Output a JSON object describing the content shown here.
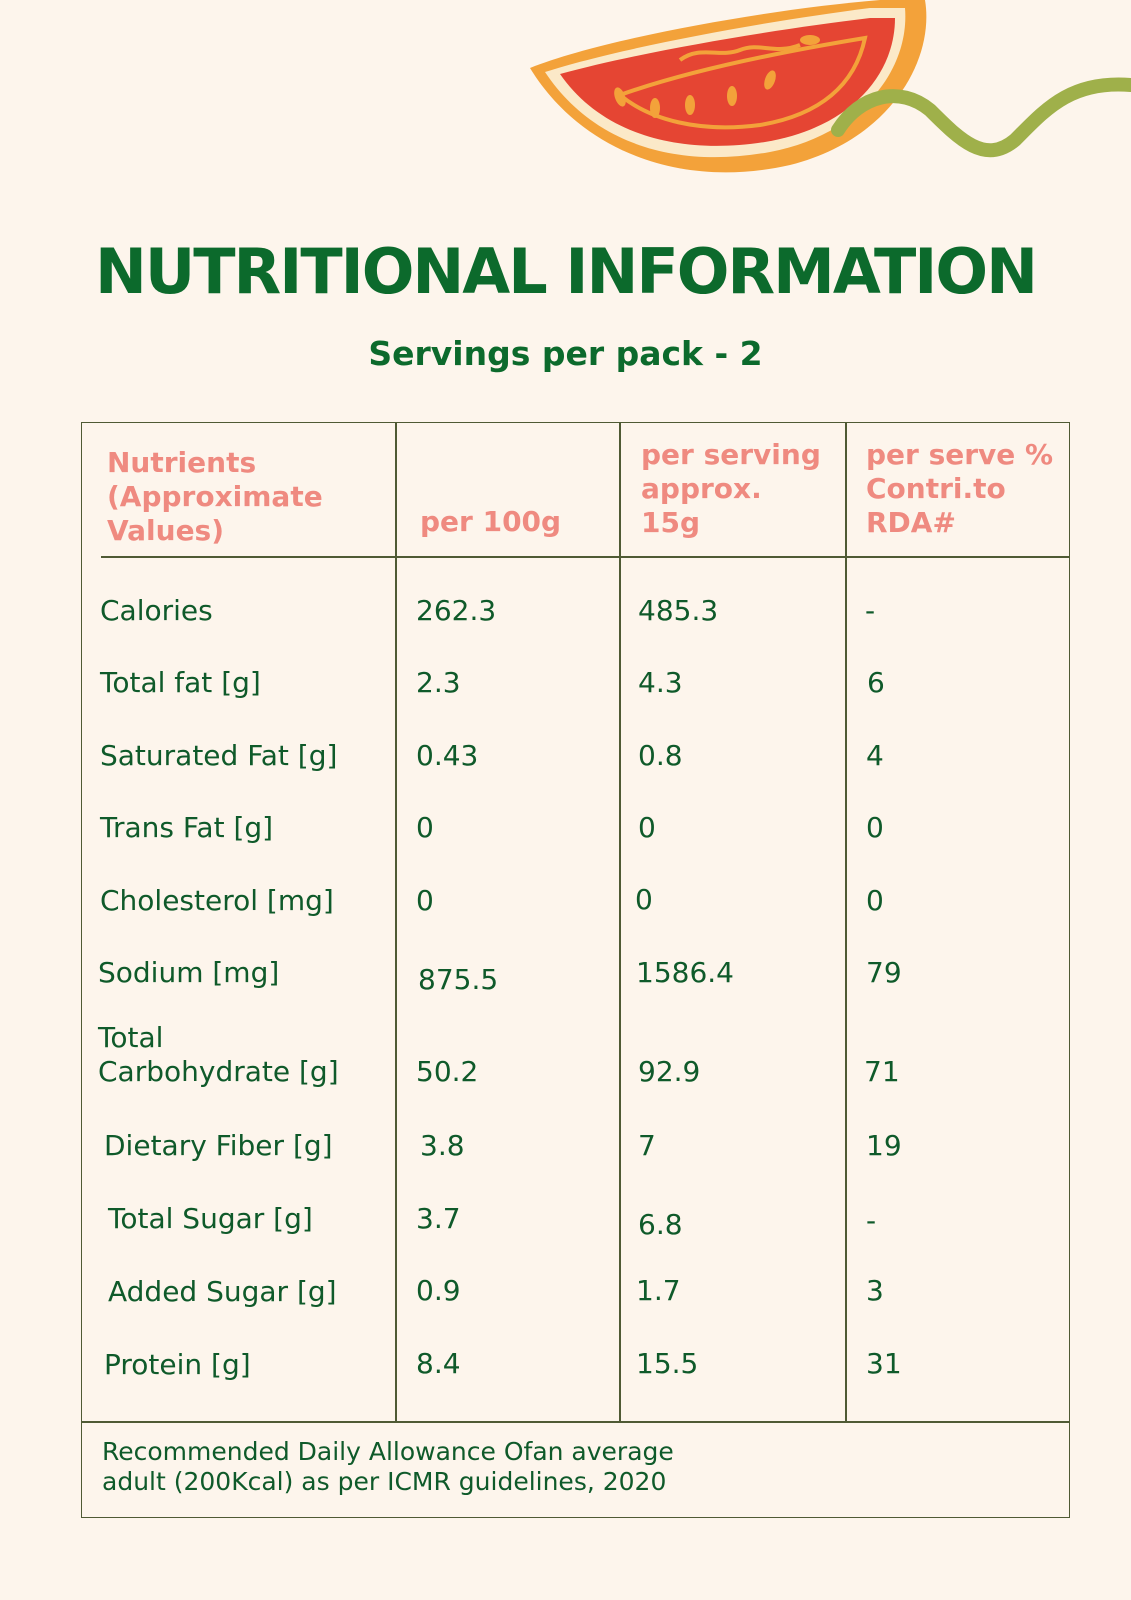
{
  "header": {
    "title": "NUTRITIONAL INFORMATION",
    "subtitle": "Servings per pack - 2"
  },
  "decoration": {
    "icons": [
      "tomato-slice-icon",
      "green-squiggle-icon"
    ],
    "colors": {
      "tomato_flesh": "#e54533",
      "tomato_rind": "#f3a23a",
      "squiggle": "#9fb04a"
    }
  },
  "table": {
    "headers": {
      "nutrients": [
        "Nutrients",
        "(Approximate",
        "Values)"
      ],
      "per100": "per 100g",
      "perServing": [
        "per serving",
        "approx.",
        "15g"
      ],
      "rda": [
        "per serve %",
        "Contri.to",
        "RDA#"
      ]
    },
    "rows": [
      {
        "name": "Calories",
        "per100": "262.3",
        "perServing": "485.3",
        "rda": "-"
      },
      {
        "name": "Total fat [g]",
        "per100": "2.3",
        "perServing": "4.3",
        "rda": "6"
      },
      {
        "name": "Saturated Fat [g]",
        "per100": "0.43",
        "perServing": "0.8",
        "rda": "4"
      },
      {
        "name": "Trans Fat [g]",
        "per100": "0",
        "perServing": "0",
        "rda": "0"
      },
      {
        "name": "Cholesterol [mg]",
        "per100": "0",
        "perServing": "0",
        "rda": "0"
      },
      {
        "name": "Sodium [mg]",
        "per100": "875.5",
        "perServing": "1586.4",
        "rda": "79"
      },
      {
        "name": [
          "Total",
          "Carbohydrate [g]"
        ],
        "per100": "50.2",
        "perServing": "92.9",
        "rda": "71"
      },
      {
        "name": "Dietary Fiber [g]",
        "per100": "3.8",
        "perServing": "7",
        "rda": "19"
      },
      {
        "name": "Total Sugar [g]",
        "per100": "3.7",
        "perServing": "6.8",
        "rda": "-"
      },
      {
        "name": "Added Sugar [g]",
        "per100": "0.9",
        "perServing": "1.7",
        "rda": "3"
      },
      {
        "name": "Protein [g]",
        "per100": "8.4",
        "perServing": "15.5",
        "rda": "31"
      }
    ],
    "footer": [
      "Recommended Daily Allowance Ofan average",
      "adult (200Kcal) as per ICMR guidelines, 2020"
    ]
  }
}
